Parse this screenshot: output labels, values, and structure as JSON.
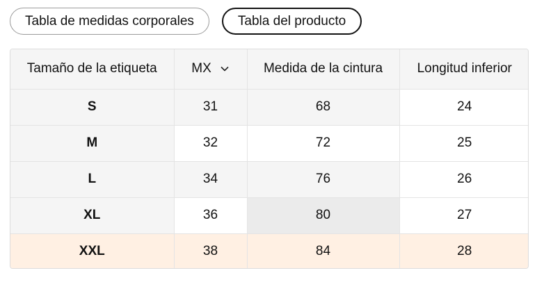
{
  "tabs": [
    {
      "label": "Tabla de medidas corporales",
      "active": false
    },
    {
      "label": "Tabla del producto",
      "active": true
    }
  ],
  "table": {
    "headers": {
      "size": "Tamaño de la etiqueta",
      "unit": "MX",
      "waist": "Medida de la cintura",
      "bottom": "Longitud inferior"
    },
    "unit_icon": "chevron-down-icon",
    "rows": [
      {
        "size": "S",
        "mx": "31",
        "waist": "68",
        "bottom": "24"
      },
      {
        "size": "M",
        "mx": "32",
        "waist": "72",
        "bottom": "25"
      },
      {
        "size": "L",
        "mx": "34",
        "waist": "76",
        "bottom": "26"
      },
      {
        "size": "XL",
        "mx": "36",
        "waist": "80",
        "bottom": "27"
      },
      {
        "size": "XXL",
        "mx": "38",
        "waist": "84",
        "bottom": "28"
      }
    ],
    "highlight_row_color": "#fff0e3"
  }
}
